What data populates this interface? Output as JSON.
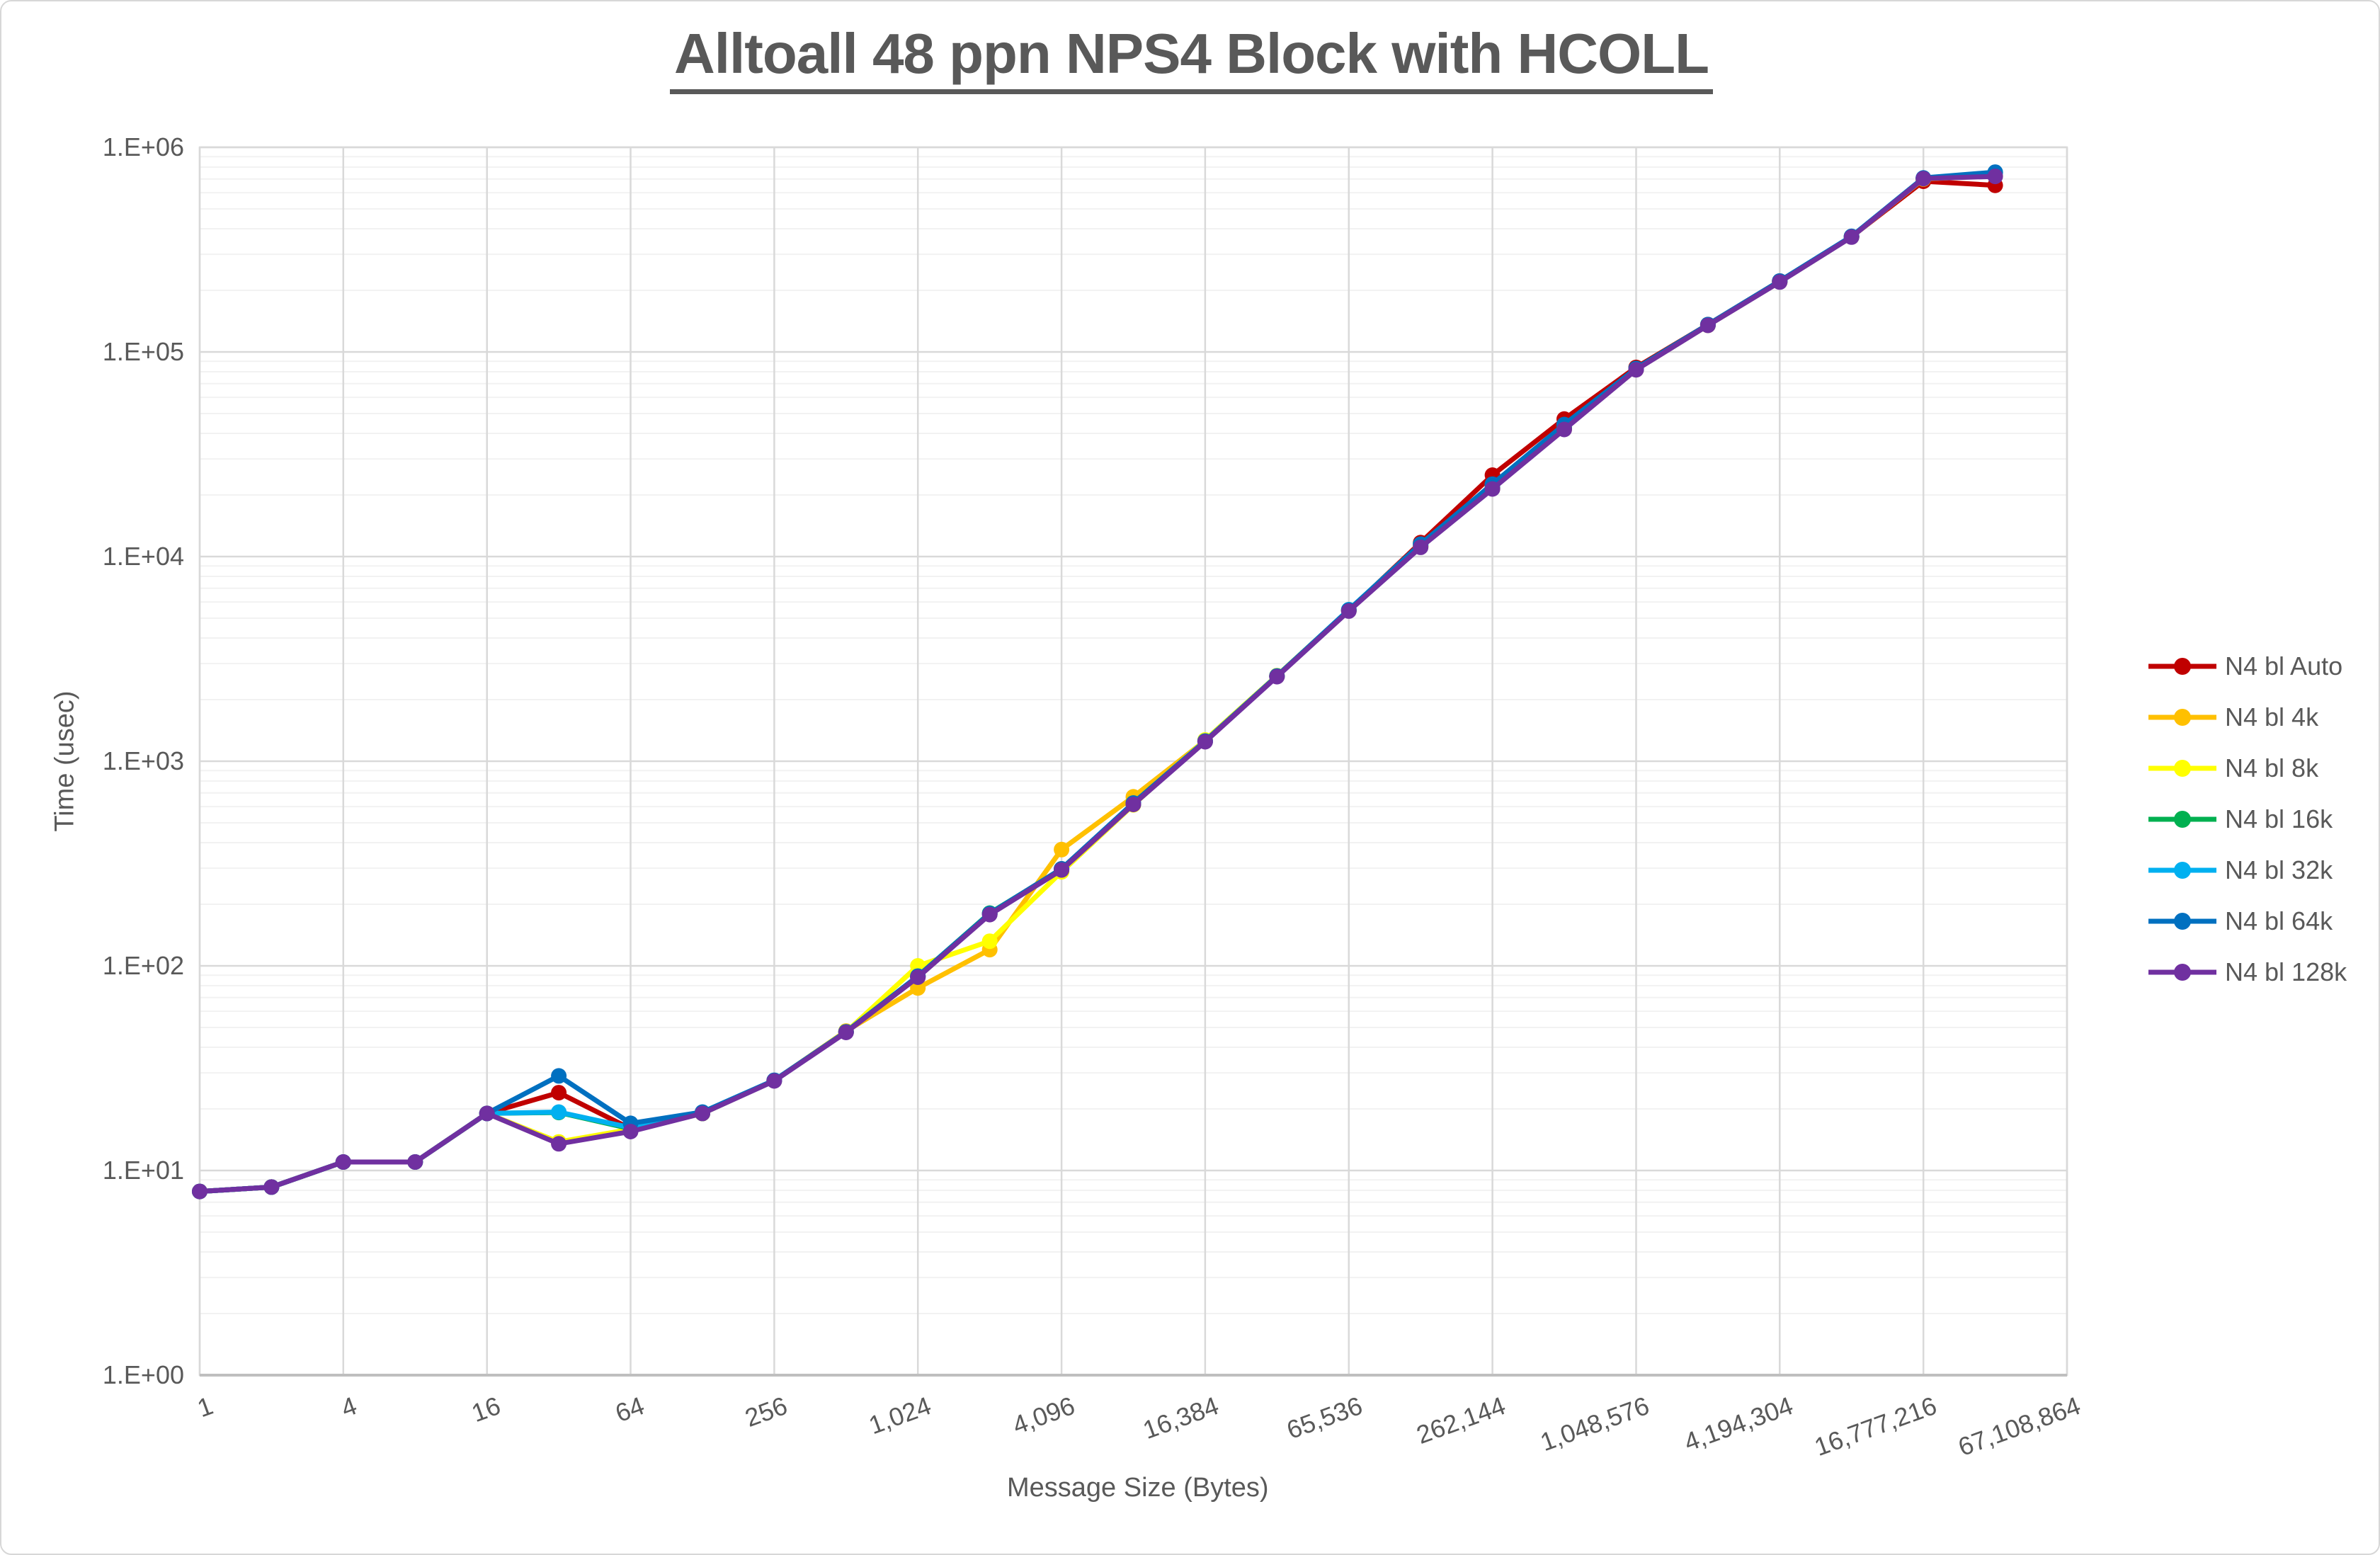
{
  "chart_data": {
    "type": "line",
    "title": "Alltoall 48 ppn NPS4 Block with HCOLL",
    "xlabel": "Message Size (Bytes)",
    "ylabel": "Time (usec)",
    "x_scale": "log2_categories",
    "y_scale": "log10",
    "ylim": [
      1,
      1000000
    ],
    "grid": "on",
    "legend_position": "right",
    "y_tick_labels": [
      "1.E+00",
      "1.E+01",
      "1.E+02",
      "1.E+03",
      "1.E+04",
      "1.E+05",
      "1.E+06"
    ],
    "categories": [
      1,
      2,
      4,
      8,
      16,
      32,
      64,
      128,
      256,
      512,
      1024,
      2048,
      4096,
      8192,
      16384,
      32768,
      65536,
      131072,
      262144,
      524288,
      1048576,
      2097152,
      4194304,
      8388608,
      16777216,
      33554432,
      67108864
    ],
    "x_tick_labels": [
      "1",
      "4",
      "16",
      "64",
      "256",
      "1,024",
      "4,096",
      "16,384",
      "65,536",
      "262,144",
      "1,048,576",
      "4,194,304",
      "16,777,216",
      "67,108,864"
    ],
    "series": [
      {
        "name": "N4 bl Auto",
        "color": "#C00000",
        "values": [
          7.9,
          8.3,
          11,
          11,
          19,
          24,
          16,
          19,
          27.5,
          47.5,
          88,
          180,
          298,
          620,
          1250,
          2600,
          5450,
          11700,
          25000,
          47000,
          84000,
          136000,
          222000,
          366000,
          682000,
          652000
        ]
      },
      {
        "name": "N4 bl 4k",
        "color": "#FFC000",
        "values": [
          7.9,
          8.3,
          11,
          11,
          19,
          13.6,
          15.8,
          19,
          27.5,
          48,
          78,
          120,
          370,
          670,
          1260,
          2600,
          5450,
          11200,
          21500,
          42000,
          82000,
          135000,
          220000,
          365000,
          700000,
          726000
        ]
      },
      {
        "name": "N4 bl 8k",
        "color": "#FFFF00",
        "values": [
          7.9,
          8.3,
          11,
          11,
          19,
          13.8,
          15.9,
          19,
          27.5,
          47.5,
          100,
          132,
          288,
          612,
          1270,
          2620,
          5480,
          11200,
          21500,
          42000,
          82000,
          135000,
          220000,
          365000,
          702000,
          724000
        ]
      },
      {
        "name": "N4 bl 16k",
        "color": "#00B050",
        "values": [
          7.9,
          8.3,
          11,
          11,
          19,
          19.2,
          16,
          19,
          27.5,
          47.5,
          89,
          181,
          296,
          618,
          1250,
          2600,
          5450,
          11300,
          21800,
          42500,
          82200,
          135200,
          221000,
          366000,
          705000,
          752000
        ]
      },
      {
        "name": "N4 bl 32k",
        "color": "#00B0F0",
        "values": [
          7.9,
          8.3,
          11,
          11,
          19,
          19.3,
          16.2,
          19.1,
          27.5,
          47.5,
          89,
          179,
          297,
          622,
          1252,
          2605,
          5500,
          11500,
          22500,
          44000,
          82500,
          135500,
          221500,
          366500,
          707000,
          748000
        ]
      },
      {
        "name": "N4 bl 64k",
        "color": "#0070C0",
        "values": [
          7.9,
          8.3,
          11,
          11,
          19,
          29,
          17,
          19.3,
          27.6,
          47.6,
          89,
          180,
          298,
          625,
          1255,
          2610,
          5480,
          11500,
          22600,
          44200,
          83000,
          136000,
          222000,
          367000,
          708000,
          756000
        ]
      },
      {
        "name": "N4 bl 128k",
        "color": "#7030A0",
        "values": [
          7.9,
          8.3,
          11,
          11,
          19,
          13.5,
          15.5,
          19,
          27.4,
          47.3,
          88,
          178,
          294,
          615,
          1245,
          2590,
          5420,
          11100,
          21400,
          41800,
          81800,
          134800,
          219500,
          364000,
          703000,
          721000
        ]
      }
    ],
    "colors": {
      "text": "#595959",
      "major_grid": "#D9D9D9",
      "minor_grid": "#F2F2F2",
      "axis_line": "#BFBFBF"
    }
  }
}
